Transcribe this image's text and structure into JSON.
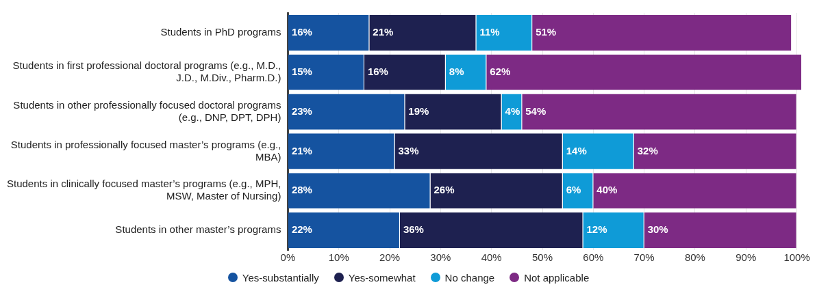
{
  "chart_data": {
    "type": "bar",
    "orientation": "horizontal",
    "stacked": true,
    "categories": [
      "Students in PhD programs",
      "Students in first professional doctoral programs (e.g., M.D., J.D., M.Div., Pharm.D.)",
      "Students in other professionally focused doctoral programs (e.g., DNP, DPT, DPH)",
      "Students in professionally focused master’s programs (e.g., MBA)",
      "Students in clinically focused master’s programs (e.g., MPH, MSW, Master of Nursing)",
      "Students in other master’s programs"
    ],
    "series": [
      {
        "name": "Yes-substantially",
        "color": "#1553a0",
        "values": [
          16,
          15,
          23,
          21,
          28,
          22
        ],
        "value_labels": [
          "16%",
          "15%",
          "23%",
          "21%",
          "28%",
          "22%"
        ]
      },
      {
        "name": "Yes-somewhat",
        "color": "#1e2150",
        "values": [
          21,
          16,
          19,
          33,
          26,
          36
        ],
        "value_labels": [
          "21%",
          "16%",
          "19%",
          "33%",
          "26%",
          "36%"
        ]
      },
      {
        "name": "No change",
        "color": "#0f9bd7",
        "values": [
          11,
          8,
          4,
          14,
          6,
          12
        ],
        "value_labels": [
          "11%",
          "8%",
          "4%",
          "14%",
          "6%",
          "12%"
        ]
      },
      {
        "name": "Not applicable",
        "color": "#7d2a84",
        "values": [
          51,
          62,
          54,
          32,
          40,
          30
        ],
        "value_labels": [
          "51%",
          "62%",
          "54%",
          "32%",
          "40%",
          "30%"
        ]
      }
    ],
    "xlim": [
      0,
      101
    ],
    "xticks": [
      {
        "value": 0,
        "label": "0%"
      },
      {
        "value": 10,
        "label": "10%"
      },
      {
        "value": 20,
        "label": "20%"
      },
      {
        "value": 30,
        "label": "30%"
      },
      {
        "value": 40,
        "label": "40%"
      },
      {
        "value": 50,
        "label": "50%"
      },
      {
        "value": 60,
        "label": "60%"
      },
      {
        "value": 70,
        "label": "70%"
      },
      {
        "value": 80,
        "label": "80%"
      },
      {
        "value": 90,
        "label": "90%"
      },
      {
        "value": 100,
        "label": "100%"
      }
    ],
    "grid": "x",
    "legend": "bottom"
  }
}
